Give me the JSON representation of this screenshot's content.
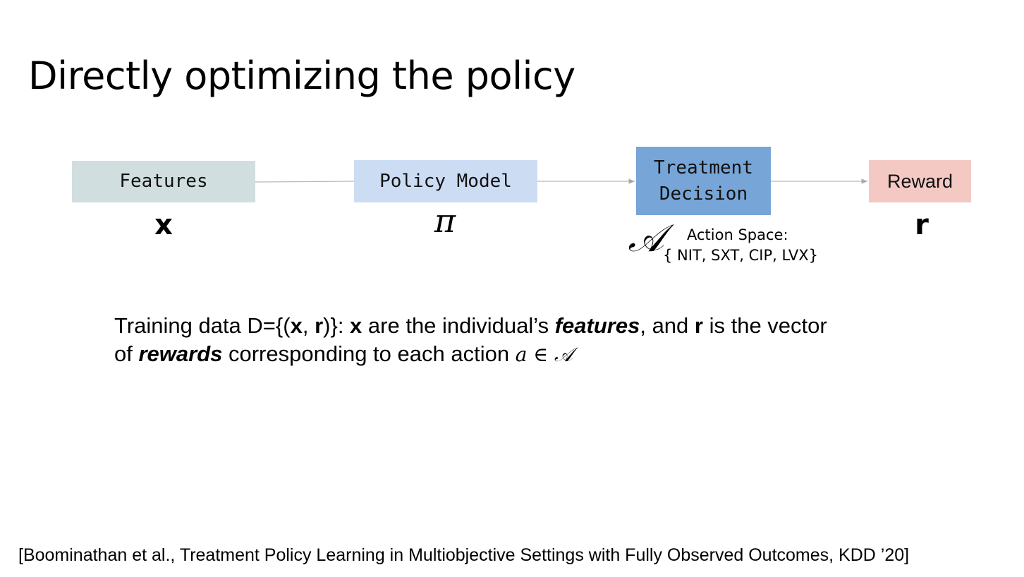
{
  "title": "Directly optimizing the policy",
  "nodes": [
    {
      "label": "Features",
      "symbol": "x",
      "color": "#d1dedf"
    },
    {
      "label": "Policy Model",
      "symbol": "π",
      "color": "#ccdcf3"
    },
    {
      "label_line1": "Treatment",
      "label_line2": "Decision",
      "symbol": "𝒜",
      "color": "#77a5d8"
    },
    {
      "label": "Reward",
      "symbol": "r",
      "color": "#f4c9c4"
    }
  ],
  "action_space": {
    "title": "Action Space:",
    "set": "{ NIT, SXT, CIP, LVX}"
  },
  "description": {
    "p1": "Training data D={(",
    "x_bold": "x",
    "p2": ", ",
    "r_bold": "r",
    "p3": ")}: ",
    "x_bold2": "x",
    "p4": " are the individual’s ",
    "features_emph": "features",
    "p5": ", and ",
    "r_bold2": "r",
    "p6": " is the vector",
    "p7": "of ",
    "rewards_emph": "rewards",
    "p8": " corresponding to each action ",
    "math": "a ∈ 𝒜"
  },
  "citation": "[Boominathan et al., Treatment Policy Learning in Multiobjective Settings with Fully Observed Outcomes, KDD ’20]",
  "colors": {
    "arrow": "#b0b0b0"
  }
}
